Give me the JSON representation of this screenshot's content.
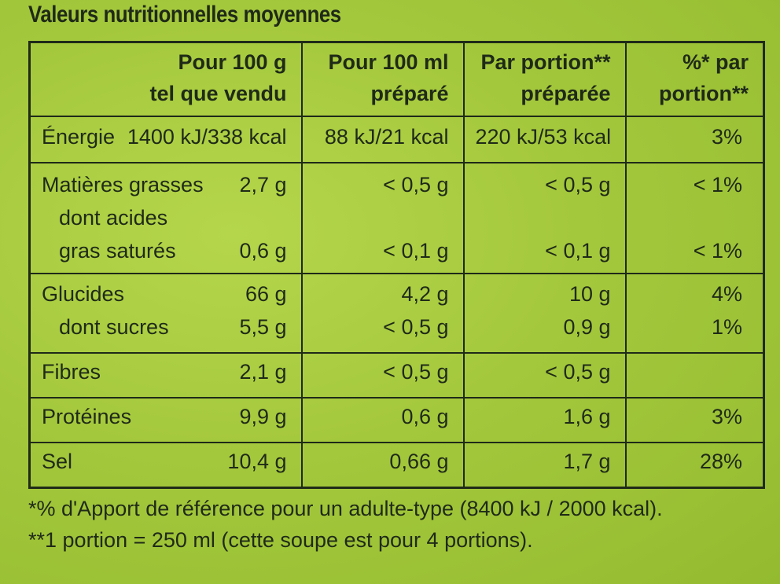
{
  "title": "Valeurs nutritionnelles moyennes",
  "headers": {
    "col1": [
      "Pour 100 g",
      "tel que vendu"
    ],
    "col2": [
      "Pour 100 ml",
      "préparé"
    ],
    "col3": [
      "Par portion**",
      "préparée"
    ],
    "col4": [
      "%* par",
      "portion**"
    ]
  },
  "rows": {
    "energy": {
      "label": "Énergie",
      "per100g": "1400 kJ/338 kcal",
      "per100ml": "88 kJ/21 kcal",
      "portion": "220 kJ/53 kcal",
      "pct": "3%"
    },
    "fat": {
      "label": "Matières grasses",
      "per100g": "2,7 g",
      "per100ml": "< 0,5 g",
      "portion": "< 0,5 g",
      "pct": "< 1%"
    },
    "satfat": {
      "label_line1": "dont acides",
      "label_line2": "gras saturés",
      "per100g": "0,6 g",
      "per100ml": "< 0,1 g",
      "portion": "< 0,1 g",
      "pct": "< 1%"
    },
    "carbs": {
      "label": "Glucides",
      "per100g": "66 g",
      "per100ml": "4,2 g",
      "portion": "10 g",
      "pct": "4%"
    },
    "sugars": {
      "label": "dont sucres",
      "per100g": "5,5 g",
      "per100ml": "< 0,5 g",
      "portion": "0,9 g",
      "pct": "1%"
    },
    "fibre": {
      "label": "Fibres",
      "per100g": "2,1 g",
      "per100ml": "< 0,5 g",
      "portion": "< 0,5 g",
      "pct": ""
    },
    "protein": {
      "label": "Protéines",
      "per100g": "9,9 g",
      "per100ml": "0,6 g",
      "portion": "1,6 g",
      "pct": "3%"
    },
    "salt": {
      "label": "Sel",
      "per100g": "10,4 g",
      "per100ml": "0,66 g",
      "portion": "1,7 g",
      "pct": "28%"
    }
  },
  "footnotes": {
    "note1": "*% d'Apport de référence pour un adulte-type (8400 kJ / 2000 kcal).",
    "note2": "**1 portion = 250 ml (cette soupe est pour 4 portions)."
  },
  "colors": {
    "background": "#a4c83c",
    "ink": "#1f2a18"
  }
}
